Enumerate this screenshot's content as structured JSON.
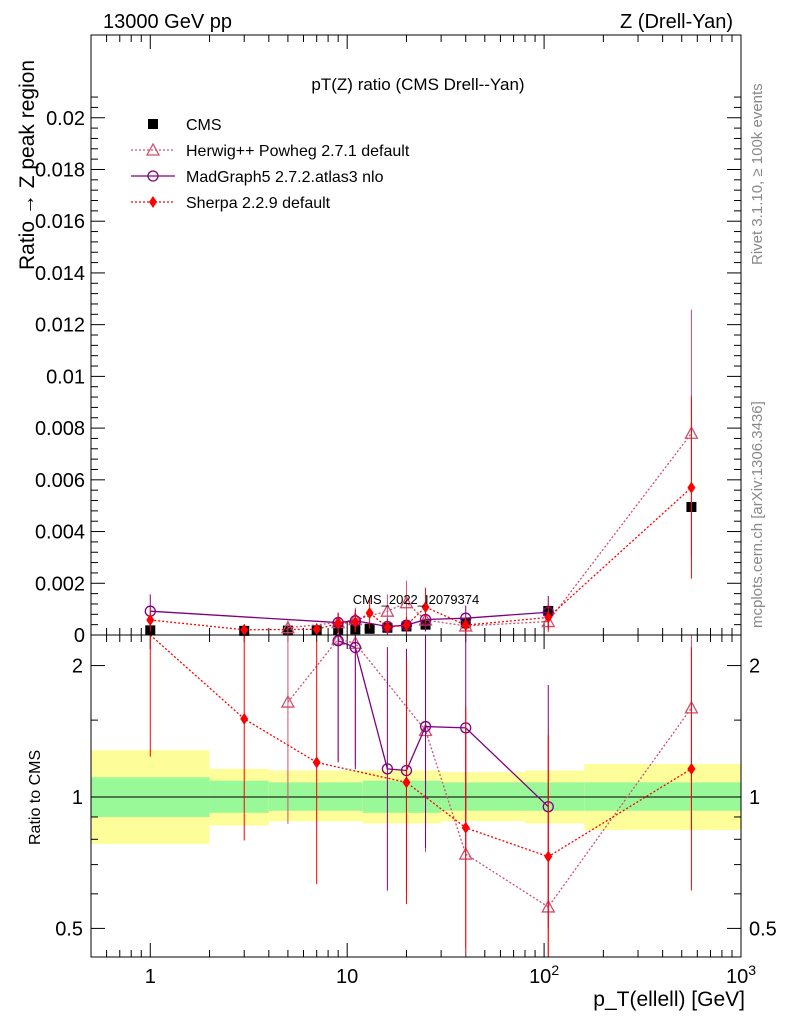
{
  "header": {
    "left": "13000 GeV pp",
    "right": "Z (Drell-Yan)"
  },
  "side_labels": {
    "rivet": "Rivet 3.1.10, ≥ 100k events",
    "mcplots": "mcplots.cern.ch [arXiv:1306.3436]"
  },
  "watermark": "CMS_2022_I2079374",
  "colors": {
    "cms": "#000000",
    "herwig": "#d0506e",
    "madgraph": "#800080",
    "sherpa": "#ff0000",
    "band_inner": "#99f999",
    "band_outer": "#fdfd99"
  },
  "chart_data": [
    {
      "type": "scatter",
      "title": "pT(Z) ratio (CMS Drell--Yan)",
      "ylabel": "Ratio → Z peak region",
      "xscale": "log",
      "xlim": [
        0.5,
        1000
      ],
      "ylim": [
        0,
        0.0232
      ],
      "yticks": [
        "0",
        "0.002",
        "0.004",
        "0.006",
        "0.008",
        "0.01",
        "0.012",
        "0.014",
        "0.016",
        "0.018",
        "0.02"
      ],
      "legend_position": "top-left",
      "series": [
        {
          "name": "CMS",
          "points": [
            {
              "x": 1,
              "y": 0.00018
            },
            {
              "x": 3,
              "y": 0.00016
            },
            {
              "x": 5,
              "y": 0.00017
            },
            {
              "x": 7,
              "y": 0.00018
            },
            {
              "x": 9,
              "y": 0.0002
            },
            {
              "x": 11,
              "y": 0.00022
            },
            {
              "x": 13,
              "y": 0.00024
            },
            {
              "x": 16,
              "y": 0.00028
            },
            {
              "x": 20,
              "y": 0.00033
            },
            {
              "x": 25,
              "y": 0.0004
            },
            {
              "x": 40,
              "y": 0.00045
            },
            {
              "x": 105,
              "y": 0.00093
            },
            {
              "x": 560,
              "y": 0.00495
            }
          ]
        },
        {
          "name": "Herwig++ Powheg 2.7.1 default",
          "points": [
            {
              "x": 5,
              "y": 0.00028
            },
            {
              "x": 9,
              "y": 0.00048
            },
            {
              "x": 11,
              "y": 0.0006
            },
            {
              "x": 16,
              "y": 0.00092
            },
            {
              "x": 20,
              "y": 0.00125
            },
            {
              "x": 25,
              "y": 0.00058
            },
            {
              "x": 40,
              "y": 0.00035
            },
            {
              "x": 105,
              "y": 0.00052
            },
            {
              "x": 560,
              "y": 0.0078
            }
          ]
        },
        {
          "name": "MadGraph5 2.7.2.atlas3 nlo",
          "points": [
            {
              "x": 1,
              "y": 0.00092
            },
            {
              "x": 9,
              "y": 0.00048
            },
            {
              "x": 11,
              "y": 0.00055
            },
            {
              "x": 16,
              "y": 0.00033
            },
            {
              "x": 20,
              "y": 0.00038
            },
            {
              "x": 25,
              "y": 0.0006
            },
            {
              "x": 40,
              "y": 0.00065
            },
            {
              "x": 105,
              "y": 0.00088
            }
          ]
        },
        {
          "name": "Sherpa 2.2.9 default",
          "points": [
            {
              "x": 1,
              "y": 0.00058
            },
            {
              "x": 3,
              "y": 0.0002
            },
            {
              "x": 7,
              "y": 0.00022
            },
            {
              "x": 9,
              "y": 0.00045
            },
            {
              "x": 11,
              "y": 0.0005
            },
            {
              "x": 13,
              "y": 0.00085
            },
            {
              "x": 16,
              "y": 0.0003
            },
            {
              "x": 20,
              "y": 0.00038
            },
            {
              "x": 25,
              "y": 0.00108
            },
            {
              "x": 40,
              "y": 0.00038
            },
            {
              "x": 105,
              "y": 0.00068
            },
            {
              "x": 560,
              "y": 0.0057
            }
          ]
        }
      ]
    },
    {
      "type": "line",
      "ylabel": "Ratio to CMS",
      "xlabel": "p_T(ellell) [GeV]",
      "xscale": "log",
      "yscale": "log",
      "xlim": [
        0.5,
        1000
      ],
      "ylim": [
        0.43,
        2.35
      ],
      "xticks": [
        "1",
        "10",
        "10^2",
        "10^3"
      ],
      "yticks": [
        "0.5",
        "1",
        "2"
      ],
      "bands": [
        {
          "x0": 0.5,
          "x1": 2,
          "inner": [
            0.9,
            1.11
          ],
          "outer": [
            0.78,
            1.28
          ]
        },
        {
          "x0": 2,
          "x1": 4,
          "inner": [
            0.92,
            1.09
          ],
          "outer": [
            0.86,
            1.16
          ]
        },
        {
          "x0": 4,
          "x1": 12,
          "inner": [
            0.93,
            1.08
          ],
          "outer": [
            0.88,
            1.15
          ]
        },
        {
          "x0": 12,
          "x1": 30,
          "inner": [
            0.92,
            1.09
          ],
          "outer": [
            0.87,
            1.15
          ]
        },
        {
          "x0": 30,
          "x1": 80,
          "inner": [
            0.93,
            1.08
          ],
          "outer": [
            0.88,
            1.14
          ]
        },
        {
          "x0": 80,
          "x1": 160,
          "inner": [
            0.93,
            1.08
          ],
          "outer": [
            0.87,
            1.15
          ]
        },
        {
          "x0": 160,
          "x1": 1000,
          "inner": [
            0.93,
            1.08
          ],
          "outer": [
            0.84,
            1.19
          ]
        }
      ],
      "series": [
        {
          "name": "Herwig++ Powheg 2.7.1 default",
          "points": [
            {
              "x": 5,
              "y": 1.65
            },
            {
              "x": 9,
              "y": 2.3
            },
            {
              "x": 11,
              "y": 2.25
            },
            {
              "x": 25,
              "y": 1.42
            },
            {
              "x": 40,
              "y": 0.74
            },
            {
              "x": 105,
              "y": 0.56
            },
            {
              "x": 560,
              "y": 1.6
            }
          ]
        },
        {
          "name": "MadGraph5 2.7.2.atlas3 nlo",
          "points": [
            {
              "x": 9,
              "y": 2.28
            },
            {
              "x": 11,
              "y": 2.2
            },
            {
              "x": 16,
              "y": 1.16
            },
            {
              "x": 20,
              "y": 1.15
            },
            {
              "x": 25,
              "y": 1.45
            },
            {
              "x": 40,
              "y": 1.44
            },
            {
              "x": 105,
              "y": 0.95
            }
          ]
        },
        {
          "name": "Sherpa 2.2.9 default",
          "points": [
            {
              "x": 1,
              "y": 2.35
            },
            {
              "x": 3,
              "y": 1.51
            },
            {
              "x": 7,
              "y": 1.2
            },
            {
              "x": 20,
              "y": 1.08
            },
            {
              "x": 40,
              "y": 0.85
            },
            {
              "x": 105,
              "y": 0.73
            },
            {
              "x": 560,
              "y": 1.16
            }
          ]
        }
      ]
    }
  ]
}
